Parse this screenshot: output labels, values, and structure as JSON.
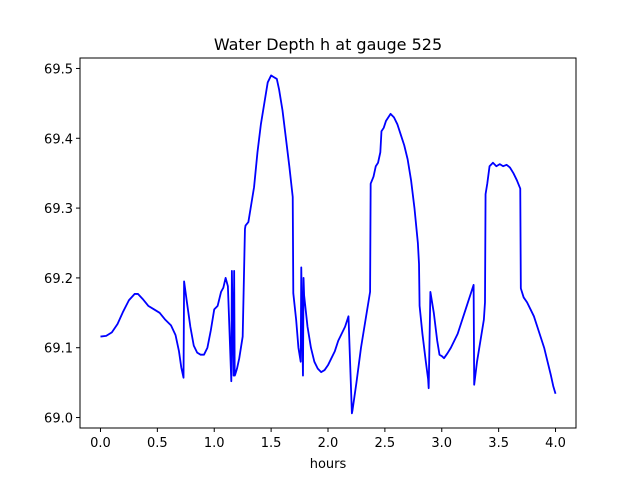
{
  "chart_data": {
    "type": "line",
    "title": "Water Depth h at gauge 525",
    "xlabel": "hours",
    "ylabel": "",
    "xlim": [
      -0.18,
      4.18
    ],
    "ylim": [
      68.985,
      69.515
    ],
    "xticks": [
      0.0,
      0.5,
      1.0,
      1.5,
      2.0,
      2.5,
      3.0,
      3.5,
      4.0
    ],
    "xtick_labels": [
      "0.0",
      "0.5",
      "1.0",
      "1.5",
      "2.0",
      "2.5",
      "3.0",
      "3.5",
      "4.0"
    ],
    "yticks": [
      69.0,
      69.1,
      69.2,
      69.3,
      69.4,
      69.5
    ],
    "ytick_labels": [
      "69.0",
      "69.1",
      "69.2",
      "69.3",
      "69.4",
      "69.5"
    ],
    "grid": false,
    "series": [
      {
        "color": "#0000ff",
        "x": [
          0.0,
          0.05,
          0.1,
          0.15,
          0.2,
          0.25,
          0.3,
          0.33,
          0.37,
          0.42,
          0.47,
          0.52,
          0.57,
          0.62,
          0.66,
          0.69,
          0.71,
          0.73,
          0.735,
          0.76,
          0.79,
          0.82,
          0.85,
          0.88,
          0.91,
          0.94,
          0.97,
          1.0,
          1.03,
          1.06,
          1.08,
          1.1,
          1.12,
          1.15,
          1.155,
          1.17,
          1.175,
          1.18,
          1.185,
          1.2,
          1.22,
          1.25,
          1.27,
          1.275,
          1.3,
          1.32,
          1.35,
          1.38,
          1.41,
          1.44,
          1.47,
          1.5,
          1.52,
          1.55,
          1.57,
          1.6,
          1.63,
          1.66,
          1.69,
          1.695,
          1.72,
          1.74,
          1.76,
          1.765,
          1.78,
          1.785,
          1.79,
          1.8,
          1.82,
          1.85,
          1.88,
          1.91,
          1.94,
          1.97,
          2.0,
          2.03,
          2.06,
          2.09,
          2.12,
          2.15,
          2.18,
          2.21,
          2.215,
          2.25,
          2.29,
          2.33,
          2.37,
          2.375,
          2.4,
          2.42,
          2.44,
          2.46,
          2.47,
          2.49,
          2.51,
          2.55,
          2.58,
          2.61,
          2.64,
          2.67,
          2.7,
          2.73,
          2.76,
          2.79,
          2.8,
          2.805,
          2.83,
          2.86,
          2.88,
          2.885,
          2.9,
          2.93,
          2.96,
          2.98,
          3.0,
          3.02,
          3.05,
          3.08,
          3.11,
          3.14,
          3.17,
          3.2,
          3.23,
          3.26,
          3.28,
          3.285,
          3.31,
          3.34,
          3.37,
          3.38,
          3.385,
          3.4,
          3.42,
          3.45,
          3.48,
          3.51,
          3.54,
          3.57,
          3.6,
          3.63,
          3.66,
          3.69,
          3.695,
          3.72,
          3.75,
          3.78,
          3.81,
          3.84,
          3.87,
          3.9,
          3.93,
          3.96,
          3.98,
          4.0
        ],
        "y": [
          69.116,
          69.117,
          69.122,
          69.134,
          69.152,
          69.168,
          69.177,
          69.177,
          69.17,
          69.16,
          69.155,
          69.15,
          69.14,
          69.132,
          69.118,
          69.095,
          69.072,
          69.057,
          69.195,
          69.165,
          69.13,
          69.103,
          69.093,
          69.09,
          69.09,
          69.1,
          69.125,
          69.155,
          69.16,
          69.18,
          69.186,
          69.2,
          69.188,
          69.052,
          69.21,
          69.06,
          69.21,
          69.06,
          69.062,
          69.07,
          69.085,
          69.116,
          69.27,
          69.275,
          69.28,
          69.3,
          69.33,
          69.38,
          69.42,
          69.45,
          69.48,
          69.49,
          69.488,
          69.485,
          69.47,
          69.44,
          69.4,
          69.36,
          69.316,
          69.178,
          69.14,
          69.1,
          69.08,
          69.215,
          69.06,
          69.2,
          69.175,
          69.16,
          69.13,
          69.1,
          69.08,
          69.07,
          69.065,
          69.068,
          69.075,
          69.085,
          69.095,
          69.11,
          69.12,
          69.13,
          69.145,
          69.006,
          69.01,
          69.05,
          69.1,
          69.14,
          69.18,
          69.335,
          69.345,
          69.36,
          69.365,
          69.38,
          69.41,
          69.415,
          69.425,
          69.435,
          69.43,
          69.42,
          69.405,
          69.39,
          69.37,
          69.34,
          69.3,
          69.25,
          69.22,
          69.16,
          69.12,
          69.08,
          69.055,
          69.042,
          69.18,
          69.15,
          69.11,
          69.09,
          69.088,
          69.085,
          69.092,
          69.1,
          69.11,
          69.12,
          69.135,
          69.15,
          69.165,
          69.18,
          69.19,
          69.047,
          69.08,
          69.11,
          69.14,
          69.165,
          69.32,
          69.335,
          69.36,
          69.365,
          69.36,
          69.363,
          69.36,
          69.362,
          69.358,
          69.35,
          69.34,
          69.328,
          69.185,
          69.172,
          69.165,
          69.155,
          69.145,
          69.13,
          69.115,
          69.1,
          69.08,
          69.06,
          69.045,
          69.034
        ]
      }
    ]
  }
}
